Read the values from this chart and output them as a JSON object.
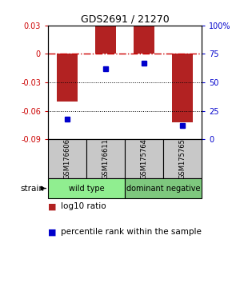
{
  "title": "GDS2691 / 21270",
  "samples": [
    "GSM176606",
    "GSM176611",
    "GSM175764",
    "GSM175765"
  ],
  "log10_ratios": [
    -0.05,
    0.03,
    0.03,
    -0.072
  ],
  "percentile_ranks": [
    18,
    62,
    67,
    12
  ],
  "bar_color": "#B22222",
  "dot_color": "#0000CC",
  "ylim_left": [
    -0.09,
    0.03
  ],
  "ylim_right": [
    0,
    100
  ],
  "yticks_left": [
    -0.09,
    -0.06,
    -0.03,
    0,
    0.03
  ],
  "yticks_right": [
    0,
    25,
    50,
    75,
    100
  ],
  "ytick_labels_left": [
    "-0.09",
    "-0.06",
    "-0.03",
    "0",
    "0.03"
  ],
  "ytick_labels_right": [
    "0",
    "25",
    "50",
    "75",
    "100%"
  ],
  "groups": [
    {
      "label": "wild type",
      "samples": [
        0,
        1
      ],
      "color": "#90EE90"
    },
    {
      "label": "dominant negative",
      "samples": [
        2,
        3
      ],
      "color": "#7EC87E"
    }
  ],
  "group_label": "strain",
  "legend_ratio_label": "log10 ratio",
  "legend_pct_label": "percentile rank within the sample",
  "bar_width": 0.55,
  "zero_line_color": "#CC0000",
  "dotted_line_color": "#000000",
  "background_color": "#FFFFFF"
}
